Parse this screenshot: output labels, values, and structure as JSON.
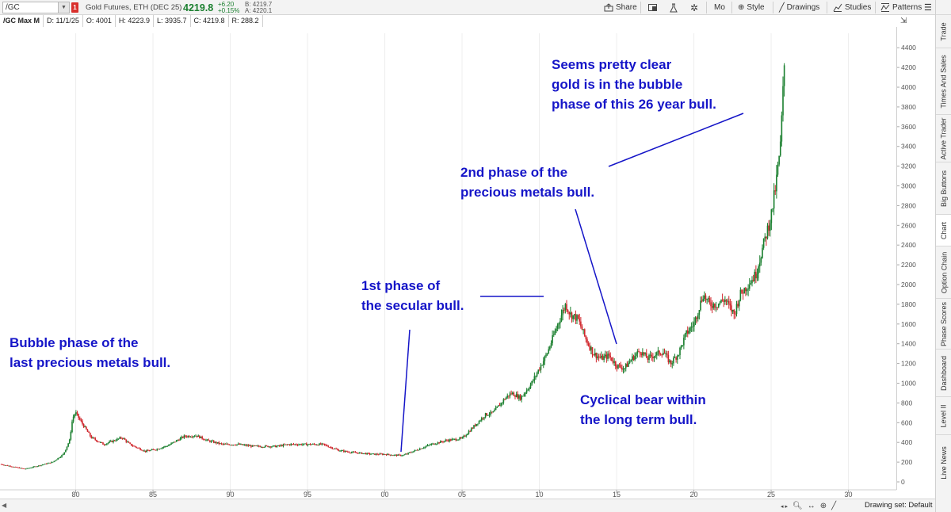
{
  "toolbar": {
    "symbol": "/GC",
    "alert_badge": "1",
    "instrument": "Gold Futures, ETH (DEC 25)",
    "last": "4219.8",
    "change": "+6.20",
    "change_pct": "+0.15%",
    "bid": "B: 4219.7",
    "ask": "A: 4220.1",
    "share": "Share",
    "timeframe": "Mo",
    "style": "Style",
    "drawings": "Drawings",
    "studies": "Studies",
    "patterns": "Patterns"
  },
  "infobar": {
    "symbol": "/GC Max M",
    "date": "D: 11/1/25",
    "open": "O: 4001",
    "high": "H: 4223.9",
    "low": "L: 3935.7",
    "close": "C: 4219.8",
    "range": "R: 288.2"
  },
  "side_tabs": [
    "Trade",
    "Times And Sales",
    "Active Trader",
    "Big Buttons",
    "Chart",
    "Option Chain",
    "Phase Scores",
    "Dashboard",
    "Level II",
    "Live News"
  ],
  "bottom": {
    "drawing_set": "Drawing set: Default"
  },
  "annotations": {
    "a1": "Bubble phase of the\nlast precious metals bull.",
    "a2": "1st phase of\nthe secular bull.",
    "a3": "2nd phase of the\nprecious metals bull.",
    "a4": "Cyclical bear within\nthe long term bull.",
    "a5": "Seems pretty clear\ngold is in the bubble\nphase of this 26 year bull."
  },
  "colors": {
    "up": "#1a7f2e",
    "down": "#d0252b",
    "annotation": "#1515c8"
  },
  "chart_data": {
    "type": "line",
    "x_tick_labels": [
      "80",
      "85",
      "90",
      "95",
      "00",
      "05",
      "10",
      "15",
      "20",
      "25",
      "30"
    ],
    "x_tick_years": [
      1980,
      1985,
      1990,
      1995,
      2000,
      2005,
      2010,
      2015,
      2020,
      2025,
      2030
    ],
    "y_ticks": [
      0,
      200,
      400,
      600,
      800,
      1000,
      1200,
      1400,
      1600,
      1800,
      2000,
      2200,
      2400,
      2600,
      2800,
      3000,
      3200,
      3400,
      3600,
      3800,
      4000,
      4200,
      4400
    ],
    "ylim": [
      0,
      4450
    ],
    "xlim": [
      1975.1,
      2033.1
    ],
    "series": [
      {
        "x": [
          1975.1,
          1976.7,
          1977.5,
          1978.5,
          1979.2,
          1979.6,
          1979.8,
          1980.0,
          1980.3,
          1981.0,
          1981.8,
          1982.5,
          1983.0,
          1983.5,
          1984.5,
          1985.2,
          1986.0,
          1987.0,
          1987.8,
          1988.5,
          1989.5,
          1990.5,
          1991.5,
          1993.0,
          1993.8,
          1994.5,
          1996.0,
          1997.0,
          1997.8,
          1998.5,
          1999.3,
          2000.0,
          2000.7,
          2001.2,
          2002.0,
          2003.0,
          2004.0,
          2005.0,
          2006.0,
          2006.5,
          2007.0,
          2007.8,
          2008.2,
          2008.8,
          2009.5,
          2010.5,
          2011.2,
          2011.7,
          2012.0,
          2012.5,
          2013.0,
          2013.5,
          2014.0,
          2014.5,
          2015.0,
          2015.5,
          2016.0,
          2016.5,
          2017.0,
          2017.5,
          2018.0,
          2018.5,
          2019.0,
          2019.5,
          2020.0,
          2020.6,
          2021.0,
          2021.5,
          2022.0,
          2022.6,
          2023.0,
          2023.5,
          2024.0,
          2024.5,
          2025.0,
          2025.3,
          2025.6,
          2025.85
        ],
        "close": [
          180,
          130,
          160,
          200,
          280,
          420,
          650,
          700,
          620,
          450,
          380,
          420,
          450,
          380,
          310,
          330,
          370,
          460,
          470,
          420,
          380,
          380,
          360,
          360,
          380,
          380,
          380,
          320,
          300,
          290,
          280,
          280,
          270,
          270,
          320,
          380,
          420,
          440,
          600,
          680,
          700,
          850,
          900,
          850,
          1000,
          1300,
          1600,
          1800,
          1700,
          1650,
          1450,
          1300,
          1250,
          1280,
          1180,
          1150,
          1250,
          1330,
          1250,
          1290,
          1320,
          1200,
          1300,
          1500,
          1600,
          1900,
          1800,
          1800,
          1850,
          1700,
          1900,
          2000,
          2100,
          2400,
          2700,
          3000,
          3400,
          4220
        ]
      }
    ]
  }
}
